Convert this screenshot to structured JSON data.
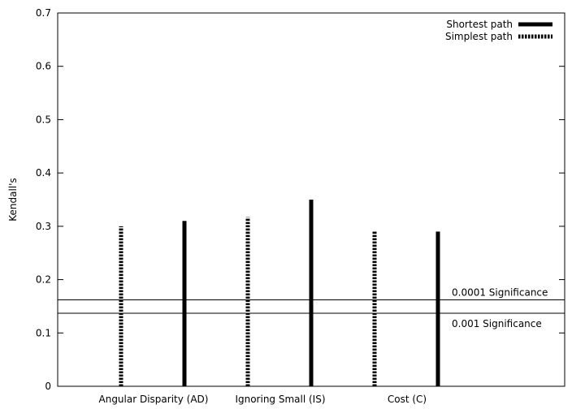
{
  "chart_data": {
    "type": "bar",
    "title": "",
    "xlabel": "",
    "ylabel": "Kendall's",
    "ylim": [
      0,
      0.7
    ],
    "yticks": [
      "0",
      "0.1",
      "0.2",
      "0.3",
      "0.4",
      "0.5",
      "0.6",
      "0.7"
    ],
    "categories": [
      "Angular Disparity (AD)",
      "Ignoring Small (IS)",
      "Cost (C)"
    ],
    "series": [
      {
        "name": "Shortest path",
        "style": "solid",
        "values": [
          0.31,
          0.35,
          0.29
        ]
      },
      {
        "name": "Simplest path",
        "style": "dotted",
        "values": [
          0.3,
          0.317,
          0.29
        ]
      }
    ],
    "reference_lines": [
      {
        "label": "0.0001 Significance",
        "value": 0.162
      },
      {
        "label": "0.001 Significance",
        "value": 0.137
      }
    ],
    "legend_position": "top-right",
    "grid": false,
    "colors": {
      "bar": "#000000",
      "reference_line": "#000000"
    }
  }
}
